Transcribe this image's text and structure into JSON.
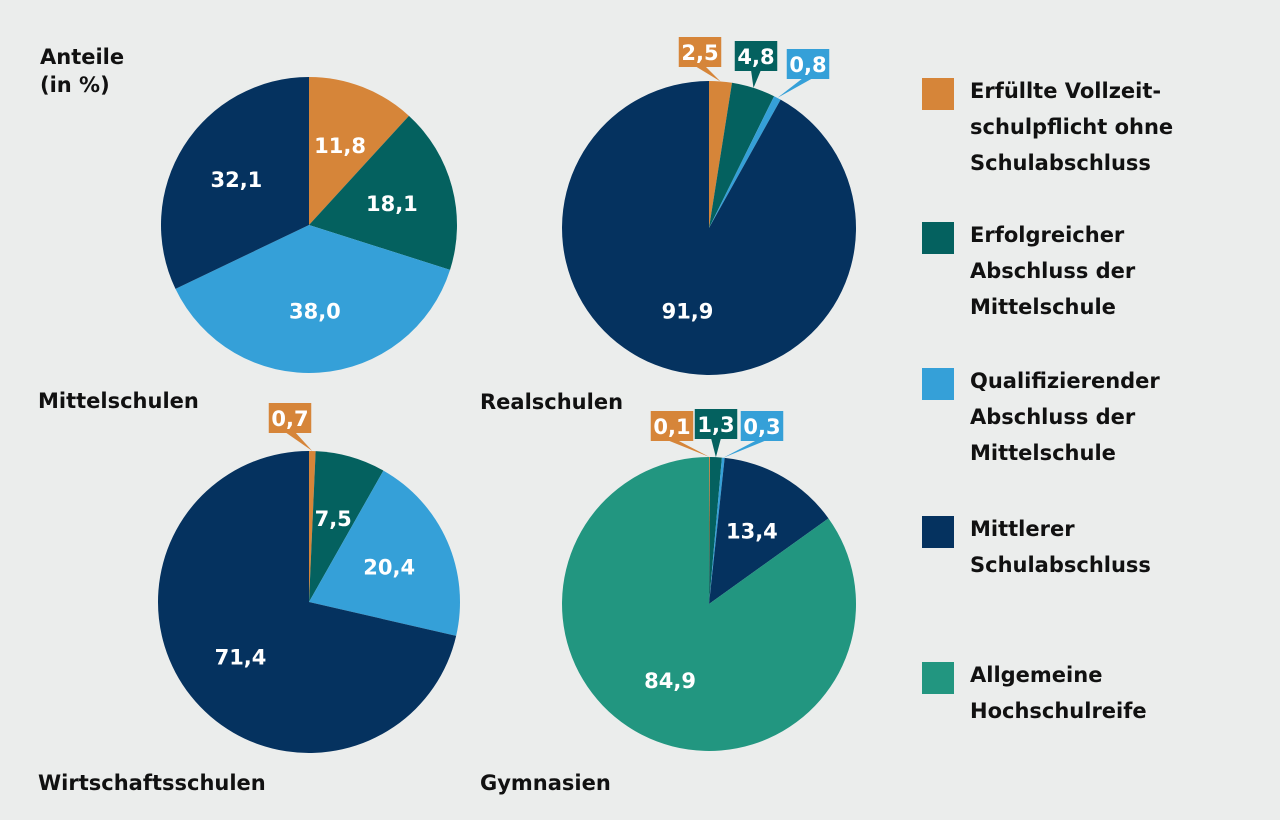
{
  "axis_label": "Anteile\n(in %)",
  "colors": {
    "orange": "#d68539",
    "darkteal": "#04615f",
    "lightblue": "#35a0d8",
    "navy": "#05325f",
    "teal": "#229680",
    "background": "#ebedec"
  },
  "legend": [
    {
      "label": "Erfüllte Vollzeit-\nschulpflicht ohne\nSchulabschluss",
      "color": "#d68539"
    },
    {
      "label": "Erfolgreicher\nAbschluss der\nMittelschule",
      "color": "#04615f"
    },
    {
      "label": "Qualifizierender\nAbschluss der\nMittelschule",
      "color": "#35a0d8"
    },
    {
      "label": "Mittlerer\nSchulabschluss",
      "color": "#05325f"
    },
    {
      "label": "Allgemeine\nHochschulreife",
      "color": "#229680"
    }
  ],
  "chart_data": [
    {
      "type": "pie",
      "title": "Mittelschulen",
      "slices": [
        {
          "category": "Erfüllte Vollzeitschulpflicht ohne Schulabschluss",
          "value": 11.8,
          "label": "11,8",
          "color": "#d68539"
        },
        {
          "category": "Erfolgreicher Abschluss der Mittelschule",
          "value": 18.1,
          "label": "18,1",
          "color": "#04615f"
        },
        {
          "category": "Qualifizierender Abschluss der Mittelschule",
          "value": 38.0,
          "label": "38,0",
          "color": "#35a0d8"
        },
        {
          "category": "Mittlerer Schulabschluss",
          "value": 32.1,
          "label": "32,1",
          "color": "#05325f"
        }
      ]
    },
    {
      "type": "pie",
      "title": "Realschulen",
      "slices": [
        {
          "category": "Erfüllte Vollzeitschulpflicht ohne Schulabschluss",
          "value": 2.5,
          "label": "2,5",
          "color": "#d68539"
        },
        {
          "category": "Erfolgreicher Abschluss der Mittelschule",
          "value": 4.8,
          "label": "4,8",
          "color": "#04615f"
        },
        {
          "category": "Qualifizierender Abschluss der Mittelschule",
          "value": 0.8,
          "label": "0,8",
          "color": "#35a0d8"
        },
        {
          "category": "Mittlerer Schulabschluss",
          "value": 91.9,
          "label": "91,9",
          "color": "#05325f"
        }
      ]
    },
    {
      "type": "pie",
      "title": "Wirtschaftsschulen",
      "slices": [
        {
          "category": "Erfüllte Vollzeitschulpflicht ohne Schulabschluss",
          "value": 0.7,
          "label": "0,7",
          "color": "#d68539"
        },
        {
          "category": "Erfolgreicher Abschluss der Mittelschule",
          "value": 7.5,
          "label": "7,5",
          "color": "#04615f"
        },
        {
          "category": "Qualifizierender Abschluss der Mittelschule",
          "value": 20.4,
          "label": "20,4",
          "color": "#35a0d8"
        },
        {
          "category": "Mittlerer Schulabschluss",
          "value": 71.4,
          "label": "71,4",
          "color": "#05325f"
        }
      ]
    },
    {
      "type": "pie",
      "title": "Gymnasien",
      "slices": [
        {
          "category": "Erfüllte Vollzeitschulpflicht ohne Schulabschluss",
          "value": 0.1,
          "label": "0,1",
          "color": "#d68539"
        },
        {
          "category": "Erfolgreicher Abschluss der Mittelschule",
          "value": 1.3,
          "label": "1,3",
          "color": "#04615f"
        },
        {
          "category": "Qualifizierender Abschluss der Mittelschule",
          "value": 0.3,
          "label": "0,3",
          "color": "#35a0d8"
        },
        {
          "category": "Mittlerer Schulabschluss",
          "value": 13.4,
          "label": "13,4",
          "color": "#05325f"
        },
        {
          "category": "Allgemeine Hochschulreife",
          "value": 84.9,
          "label": "84,9",
          "color": "#229680"
        }
      ]
    }
  ]
}
